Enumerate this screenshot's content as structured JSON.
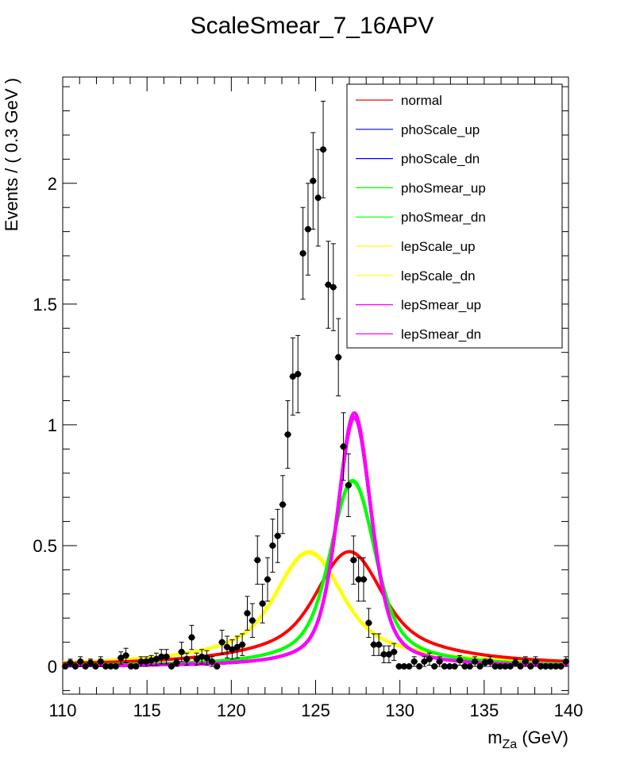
{
  "chart_data": {
    "type": "line",
    "title": "ScaleSmear_7_16APV",
    "xlabel_main": "m",
    "xlabel_sub": "Za",
    "xlabel_unit": " (GeV)",
    "ylabel": "Events / ( 0.3 GeV )",
    "xlim": [
      110,
      140
    ],
    "ylim": [
      -0.115,
      2.44
    ],
    "x_ticks": [
      110,
      115,
      120,
      125,
      130,
      135,
      140
    ],
    "x_tick_labels": [
      "110",
      "115",
      "120",
      "125",
      "130",
      "135",
      "140"
    ],
    "y_ticks": [
      0,
      0.5,
      1,
      1.5,
      2
    ],
    "y_tick_labels": [
      "0",
      "0.5",
      "1",
      "1.5",
      "2"
    ],
    "legend_position": "top-right",
    "grid": false,
    "series": [
      {
        "name": "normal",
        "color": "#ff0000",
        "curve": {
          "shape": "voigt",
          "mean": 127.0,
          "sigma": 1.6,
          "gamma": 4.0,
          "peak": 0.475
        }
      },
      {
        "name": "phoScale_up",
        "color": "#0000ff",
        "curve": {
          "shape": "voigt",
          "mean": 127.3,
          "sigma": 1.0,
          "gamma": 1.3,
          "peak": 1.03
        }
      },
      {
        "name": "phoScale_dn",
        "color": "#0000ff",
        "curve": {
          "shape": "voigt",
          "mean": 127.3,
          "sigma": 1.0,
          "gamma": 1.3,
          "peak": 1.03
        }
      },
      {
        "name": "phoSmear_up",
        "color": "#00ff00",
        "curve": {
          "shape": "voigt",
          "mean": 127.2,
          "sigma": 1.2,
          "gamma": 2.0,
          "peak": 0.77
        }
      },
      {
        "name": "phoSmear_dn",
        "color": "#00ff00",
        "curve": {
          "shape": "voigt",
          "mean": 127.2,
          "sigma": 1.2,
          "gamma": 2.0,
          "peak": 0.765
        }
      },
      {
        "name": "lepScale_up",
        "color": "#ffff00",
        "curve": {
          "shape": "voigt",
          "mean": 124.6,
          "sigma": 1.6,
          "gamma": 4.0,
          "peak": 0.475
        }
      },
      {
        "name": "lepScale_dn",
        "color": "#ffff00",
        "curve": {
          "shape": "voigt",
          "mean": 124.6,
          "sigma": 1.6,
          "gamma": 4.0,
          "peak": 0.47
        }
      },
      {
        "name": "lepSmear_up",
        "color": "#ff00ff",
        "curve": {
          "shape": "voigt",
          "mean": 127.3,
          "sigma": 1.0,
          "gamma": 1.3,
          "peak": 1.05
        }
      },
      {
        "name": "lepSmear_dn",
        "color": "#ff00ff",
        "curve": {
          "shape": "voigt",
          "mean": 127.3,
          "sigma": 1.0,
          "gamma": 1.3,
          "peak": 1.03
        }
      }
    ],
    "data_points": {
      "name": "data",
      "x": [
        110.15,
        110.45,
        110.75,
        111.05,
        111.35,
        111.65,
        111.95,
        112.25,
        112.55,
        112.85,
        113.15,
        113.45,
        113.75,
        114.05,
        114.35,
        114.65,
        114.95,
        115.25,
        115.55,
        115.85,
        116.15,
        116.45,
        116.75,
        117.05,
        117.35,
        117.65,
        117.95,
        118.25,
        118.55,
        118.85,
        119.15,
        119.45,
        119.75,
        120.05,
        120.35,
        120.65,
        120.95,
        121.25,
        121.55,
        121.85,
        122.15,
        122.45,
        122.75,
        123.05,
        123.35,
        123.65,
        123.95,
        124.25,
        124.55,
        124.85,
        125.15,
        125.45,
        125.75,
        126.05,
        126.35,
        126.65,
        126.95,
        127.25,
        127.55,
        127.85,
        128.15,
        128.45,
        128.75,
        129.05,
        129.35,
        129.65,
        129.95,
        130.25,
        130.55,
        130.85,
        131.15,
        131.45,
        131.75,
        132.05,
        132.35,
        132.65,
        132.95,
        133.25,
        133.55,
        133.85,
        134.15,
        134.45,
        134.75,
        135.05,
        135.35,
        135.65,
        135.95,
        136.25,
        136.55,
        136.85,
        137.15,
        137.45,
        137.75,
        138.05,
        138.35,
        138.65,
        138.95,
        139.25,
        139.55,
        139.85
      ],
      "y": [
        0.0,
        0.015,
        0.0,
        0.02,
        0.0,
        0.015,
        0.0,
        0.02,
        0.0,
        0.0,
        0.0,
        0.035,
        0.045,
        0.0,
        0.0,
        0.02,
        0.02,
        0.025,
        0.03,
        0.04,
        0.04,
        0.0,
        0.015,
        0.06,
        0.03,
        0.12,
        0.03,
        0.04,
        0.035,
        0.02,
        0.0,
        0.1,
        0.08,
        0.07,
        0.08,
        0.09,
        0.22,
        0.19,
        0.44,
        0.26,
        0.36,
        0.5,
        0.54,
        0.67,
        0.96,
        1.2,
        1.21,
        1.71,
        1.81,
        2.01,
        1.94,
        2.14,
        1.58,
        1.57,
        1.28,
        0.91,
        0.75,
        0.44,
        0.36,
        0.36,
        0.18,
        0.09,
        0.09,
        0.05,
        0.05,
        0.06,
        0.0,
        0.0,
        0.0,
        0.02,
        0.0,
        0.02,
        0.03,
        0.0,
        0.02,
        0.0,
        0.0,
        0.0,
        0.025,
        0.0,
        0.0,
        0.02,
        0.0,
        0.015,
        0.02,
        0.0,
        0.0,
        0.0,
        0.0,
        0.015,
        0.0,
        0.02,
        0.0,
        0.02,
        0.0,
        0.0,
        0.0,
        0.0,
        0.0,
        0.02
      ],
      "yerr": [
        0.0,
        0.015,
        0.0,
        0.02,
        0.0,
        0.015,
        0.0,
        0.02,
        0.0,
        0.0,
        0.0,
        0.025,
        0.03,
        0.0,
        0.0,
        0.02,
        0.02,
        0.02,
        0.025,
        0.03,
        0.03,
        0.0,
        0.015,
        0.04,
        0.025,
        0.05,
        0.025,
        0.03,
        0.03,
        0.02,
        0.0,
        0.05,
        0.045,
        0.04,
        0.045,
        0.045,
        0.07,
        0.07,
        0.1,
        0.08,
        0.09,
        0.11,
        0.11,
        0.12,
        0.14,
        0.16,
        0.16,
        0.19,
        0.19,
        0.2,
        0.2,
        0.2,
        0.18,
        0.18,
        0.16,
        0.14,
        0.13,
        0.1,
        0.09,
        0.09,
        0.06,
        0.045,
        0.045,
        0.035,
        0.035,
        0.035,
        0.0,
        0.0,
        0.0,
        0.02,
        0.0,
        0.02,
        0.025,
        0.0,
        0.02,
        0.0,
        0.0,
        0.0,
        0.02,
        0.0,
        0.0,
        0.02,
        0.0,
        0.015,
        0.02,
        0.0,
        0.0,
        0.0,
        0.0,
        0.015,
        0.0,
        0.02,
        0.0,
        0.02,
        0.0,
        0.0,
        0.0,
        0.0,
        0.0,
        0.02
      ]
    }
  }
}
